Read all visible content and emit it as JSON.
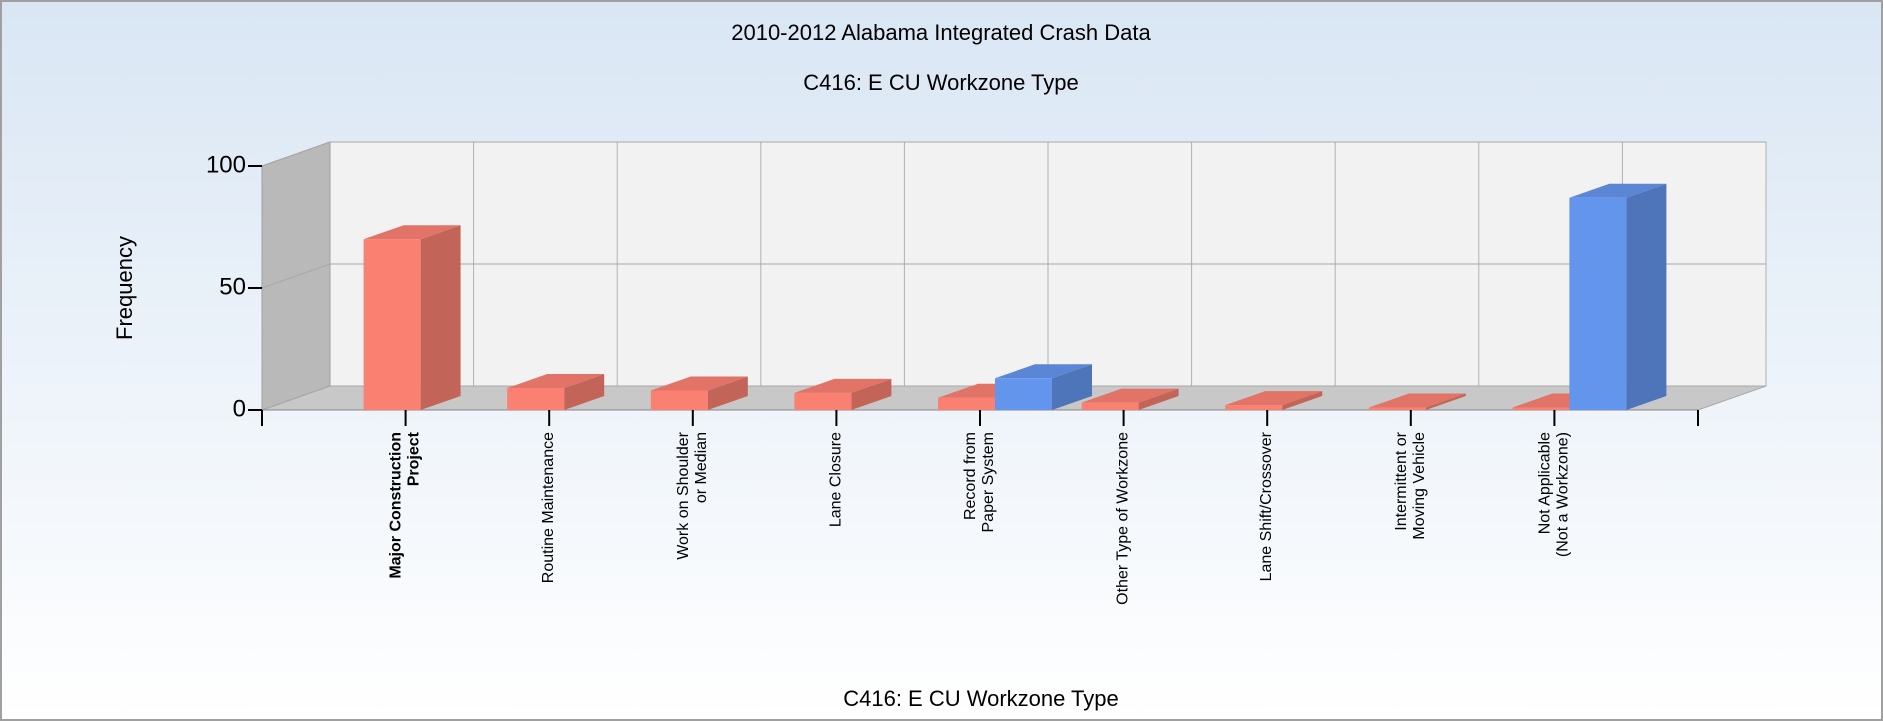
{
  "chart_data": {
    "type": "bar3d",
    "title": "2010-2012 Alabama Integrated Crash Data",
    "subtitle": "C416: E CU Workzone Type",
    "x_label": "C416: E CU Workzone Type",
    "y_label": "Frequency",
    "categories": [
      "Major Construction\nProject",
      "Routine Maintenance",
      "Work on Shoulder\nor Median",
      "Lane Closure",
      "Record from\nPaper System",
      "Other Type of Workzone",
      "Lane Shift/Crossover",
      "Intermittent or\nMoving Vehicle",
      "Not Applicable\n(Not a Workzone)"
    ],
    "series": [
      {
        "color": "#fa8072",
        "values": [
          70,
          9,
          8,
          7,
          5,
          3,
          2,
          1,
          1
        ]
      },
      {
        "color": "#6495ed",
        "values": [
          null,
          null,
          null,
          null,
          13,
          null,
          null,
          null,
          87
        ]
      }
    ],
    "ylim": [
      0,
      100
    ],
    "yticks": [
      0,
      50,
      100
    ],
    "grid": true
  }
}
